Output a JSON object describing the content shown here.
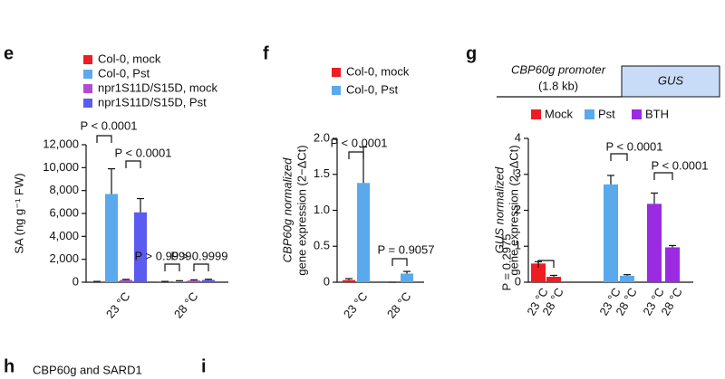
{
  "panels": [
    "e",
    "f",
    "g",
    "h",
    "i"
  ],
  "panel_h_title": "CBP60g and SARD1",
  "chart_data": [
    {
      "type": "grouped_bar",
      "ylabel": "SA (ng g⁻¹ FW)",
      "categories": [
        "23 °C",
        "28 °C"
      ],
      "series": [
        {
          "name": "Col-0, mock",
          "color": "#ee1c24",
          "values": [
            50,
            50
          ],
          "errors": [
            20,
            20
          ]
        },
        {
          "name": "Col-0, Pst",
          "color": "#5aa9ec",
          "values": [
            7700,
            80
          ],
          "errors": [
            2200,
            50
          ]
        },
        {
          "name": "npr1S11D/S15D, mock",
          "color": "#b04bd6",
          "values": [
            200,
            150
          ],
          "errors": [
            50,
            60
          ]
        },
        {
          "name": "npr1S11D/S15D, Pst",
          "color": "#5b5bf0",
          "values": [
            6100,
            200
          ],
          "errors": [
            1200,
            60
          ]
        }
      ],
      "ylim": [
        0,
        12000
      ],
      "yticks": [
        0,
        {
          "value": 2000,
          "label": "2,000"
        },
        {
          "value": 4000,
          "label": "4,000"
        },
        {
          "value": 6000,
          "label": "6,000"
        },
        {
          "value": 8000,
          "label": "8,000"
        },
        {
          "value": 10000,
          "label": "10,000"
        },
        {
          "value": 12000,
          "label": "12,000"
        }
      ],
      "annotations": [
        "P < 0.0001",
        "P < 0.0001",
        "P > 0.9999",
        "P > 0.9999"
      ]
    },
    {
      "type": "grouped_bar",
      "ylabel": "CBP60g normalized",
      "ylabel2": "gene expression (2−ΔCt)",
      "categories": [
        "23 °C",
        "28 °C"
      ],
      "series": [
        {
          "name": "Col-0, mock",
          "color": "#ee1c24",
          "values": [
            0.03,
            0
          ],
          "errors": [
            0.02,
            0
          ]
        },
        {
          "name": "Col-0, Pst",
          "color": "#5aa9ec",
          "values": [
            1.38,
            0.12
          ],
          "errors": [
            0.5,
            0.03
          ]
        }
      ],
      "ylim": [
        0,
        2
      ],
      "yticks": [
        0,
        0.5,
        {
          "value": 1,
          "label": "1.0"
        },
        1.5,
        {
          "value": 2,
          "label": "2.0"
        }
      ],
      "annotations": [
        "P < 0.0001",
        "P = 0.9057"
      ]
    },
    {
      "type": "bar",
      "ylabel": "GUS normalized",
      "ylabel2": "gene expression (2−ΔCt)",
      "promoter": "CBP60g promoter",
      "promoter_size": "(1.8 kb)",
      "reporter": "GUS",
      "legend": [
        {
          "name": "Mock",
          "color": "#ee1c24"
        },
        {
          "name": "Pst",
          "color": "#5aa9ec"
        },
        {
          "name": "BTH",
          "color": "#9a2be0"
        }
      ],
      "categories": [
        "23 °C",
        "28 °C",
        "23 °C",
        "28 °C",
        "23 °C",
        "28 °C"
      ],
      "values": [
        0.52,
        0.15,
        2.72,
        0.18,
        2.18,
        0.97
      ],
      "errors": [
        0.05,
        0.04,
        0.25,
        0.03,
        0.3,
        0.05
      ],
      "colors": [
        "#ee1c24",
        "#ee1c24",
        "#5aa9ec",
        "#5aa9ec",
        "#9a2be0",
        "#9a2be0"
      ],
      "ylim": [
        0,
        4
      ],
      "yticks": [
        0,
        1,
        2,
        3,
        4
      ],
      "annotations": [
        "P = 0.2975",
        "P < 0.0001",
        "P < 0.0001"
      ]
    }
  ]
}
